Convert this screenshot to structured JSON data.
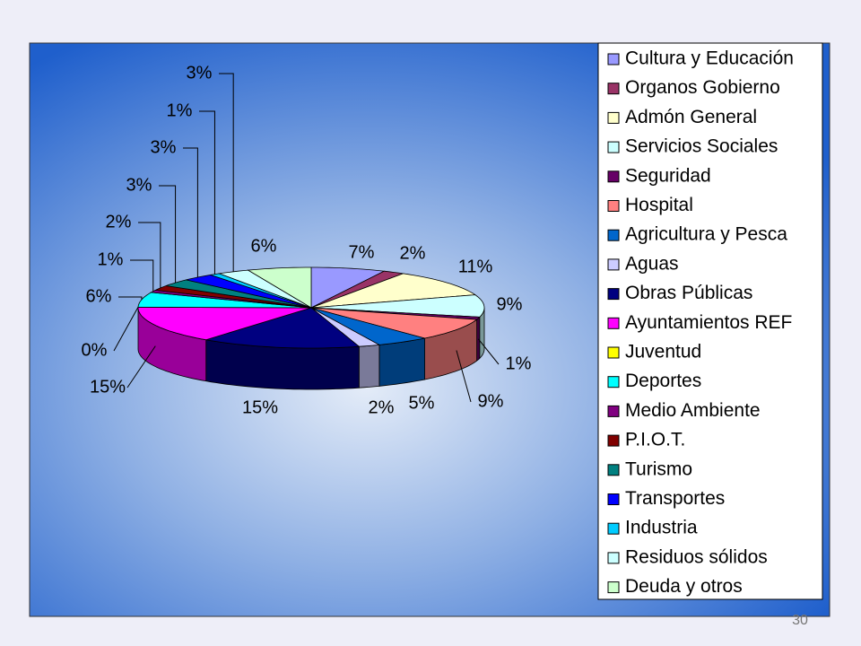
{
  "chart_data": {
    "type": "pie",
    "categories": [
      "Cultura y Educación",
      "Organos Gobierno",
      "Admón General",
      "Servicios Sociales",
      "Seguridad",
      "Hospital",
      "Agricultura y Pesca",
      "Aguas",
      "Obras Públicas",
      "Ayuntamientos REF",
      "Juventud",
      "Deportes",
      "Medio Ambiente",
      "P.I.O.T.",
      "Turismo",
      "Transportes",
      "Industria",
      "Residuos sólidos",
      "Deuda y otros"
    ],
    "values": [
      7,
      2,
      11,
      9,
      1,
      9,
      5,
      2,
      15,
      15,
      0,
      6,
      1,
      2,
      3,
      3,
      1,
      3,
      6
    ],
    "value_labels": [
      "7%",
      "2%",
      "11%",
      "9%",
      "1%",
      "9%",
      "5%",
      "2%",
      "15%",
      "15%",
      "0%",
      "6%",
      "1%",
      "2%",
      "3%",
      "3%",
      "1%",
      "3%",
      "6%"
    ],
    "colors": [
      "#9999ff",
      "#993366",
      "#ffffcc",
      "#ccffff",
      "#660066",
      "#ff8080",
      "#0066cc",
      "#ccccff",
      "#000080",
      "#ff00ff",
      "#ffff00",
      "#00ffff",
      "#800080",
      "#800000",
      "#008080",
      "#0000ff",
      "#00ccff",
      "#ccffff",
      "#ccffcc"
    ],
    "legend": "right"
  },
  "slide": {
    "page_number": "30"
  }
}
